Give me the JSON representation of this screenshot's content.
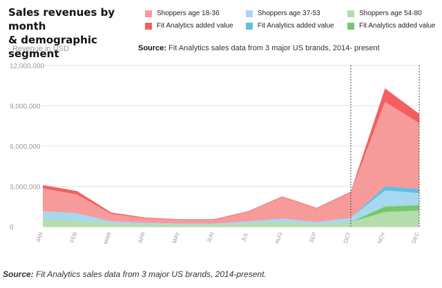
{
  "title_line1": "Sales revenues by month",
  "title_line2": "& demographic segment",
  "legend": [
    {
      "label": "Shoppers age 18-36",
      "color": "#f79a9a"
    },
    {
      "label": "Shoppers age 37-53",
      "color": "#a6d8ef"
    },
    {
      "label": "Shoppers age 54-80",
      "color": "#b3deab"
    },
    {
      "label": "Fit Analytics added value",
      "color": "#f35f5f"
    },
    {
      "label": "Fit Analytics added value",
      "color": "#5cbfe8"
    },
    {
      "label": "Fit Analytics added value",
      "color": "#74c76a"
    }
  ],
  "source_top_label": "Source:",
  "source_top_text": "Fit Analytics sales data from 3 major US brands, 2014- present",
  "caption_label": "Source:",
  "caption_text": "Fit Analytics sales data from 3 major US brands, 2014-present.",
  "chart_data": {
    "type": "area",
    "stacked": true,
    "ylabel": "Revenue in USD",
    "ylim": [
      0,
      12000000
    ],
    "yticks": [
      0,
      3000000,
      6000000,
      9000000,
      12000000
    ],
    "ytick_labels": [
      "0",
      "3,000,000",
      "6,000,000",
      "9,000,000",
      "12,000,000"
    ],
    "categories": [
      "JAN",
      "FEB",
      "MAR",
      "APR",
      "MAY",
      "JUN",
      "JUL",
      "AUG",
      "SEP",
      "OCT",
      "NOV",
      "DEC"
    ],
    "grid": true,
    "highlight_range": [
      "OCT",
      "DEC"
    ],
    "series": [
      {
        "name": "Shoppers age 54-80",
        "color": "#b3deab",
        "values": [
          550000,
          450000,
          250000,
          180000,
          150000,
          150000,
          250000,
          350000,
          200000,
          350000,
          1100000,
          1200000
        ]
      },
      {
        "name": "Fit Analytics added value",
        "color": "#74c76a",
        "values": [
          0,
          0,
          0,
          0,
          0,
          0,
          0,
          0,
          0,
          0,
          400000,
          400000
        ]
      },
      {
        "name": "Shoppers age 37-53",
        "color": "#a6d8ef",
        "values": [
          600000,
          550000,
          150000,
          100000,
          80000,
          80000,
          150000,
          250000,
          150000,
          300000,
          1200000,
          900000
        ]
      },
      {
        "name": "Fit Analytics added value",
        "color": "#5cbfe8",
        "values": [
          0,
          0,
          0,
          0,
          0,
          0,
          0,
          0,
          0,
          0,
          300000,
          300000
        ]
      },
      {
        "name": "Shoppers age 18-36",
        "color": "#f79a9a",
        "values": [
          1700000,
          1400000,
          550000,
          350000,
          280000,
          270000,
          700000,
          1600000,
          1000000,
          1900000,
          6300000,
          4900000
        ]
      },
      {
        "name": "Fit Analytics added value",
        "color": "#f35f5f",
        "values": [
          250000,
          250000,
          100000,
          50000,
          40000,
          50000,
          50000,
          50000,
          50000,
          50000,
          1000000,
          700000
        ]
      }
    ]
  }
}
